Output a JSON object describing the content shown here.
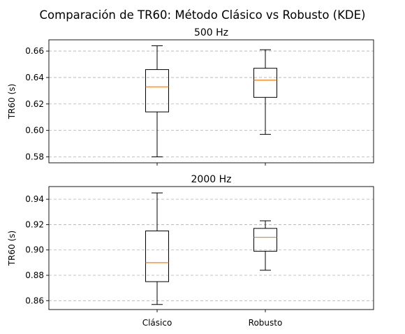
{
  "figure": {
    "suptitle": "Comparación de TR60: Método Clásico vs Robusto (KDE)"
  },
  "colors": {
    "box": "#000000",
    "median": "#ff7f0e",
    "grid": "#b0b0b0",
    "axes": "#000000"
  },
  "chart_data": [
    {
      "type": "box",
      "title": "500 Hz",
      "ylabel": "TR60 (s)",
      "xlabel": "",
      "categories": [
        "Clásico",
        "Robusto"
      ],
      "show_xtick_labels": false,
      "ylim": [
        0.5755,
        0.6685
      ],
      "yticks": [
        0.58,
        0.6,
        0.62,
        0.64,
        0.66
      ],
      "ytick_labels": [
        "0.58",
        "0.60",
        "0.62",
        "0.64",
        "0.66"
      ],
      "grid": "y-dashed",
      "boxes": [
        {
          "name": "Clásico",
          "whisker_low": 0.58,
          "q1": 0.614,
          "median": 0.633,
          "q3": 0.646,
          "whisker_high": 0.664
        },
        {
          "name": "Robusto",
          "whisker_low": 0.597,
          "q1": 0.625,
          "median": 0.638,
          "q3": 0.647,
          "whisker_high": 0.661
        }
      ]
    },
    {
      "type": "box",
      "title": "2000 Hz",
      "ylabel": "TR60 (s)",
      "xlabel": "",
      "categories": [
        "Clásico",
        "Robusto"
      ],
      "show_xtick_labels": true,
      "ylim": [
        0.853,
        0.95
      ],
      "yticks": [
        0.86,
        0.88,
        0.9,
        0.92,
        0.94
      ],
      "ytick_labels": [
        "0.86",
        "0.88",
        "0.90",
        "0.92",
        "0.94"
      ],
      "grid": "y-dashed",
      "boxes": [
        {
          "name": "Clásico",
          "whisker_low": 0.857,
          "q1": 0.875,
          "median": 0.89,
          "q3": 0.915,
          "whisker_high": 0.945
        },
        {
          "name": "Robusto",
          "whisker_low": 0.884,
          "q1": 0.899,
          "median": 0.91,
          "q3": 0.917,
          "whisker_high": 0.923
        }
      ]
    }
  ]
}
